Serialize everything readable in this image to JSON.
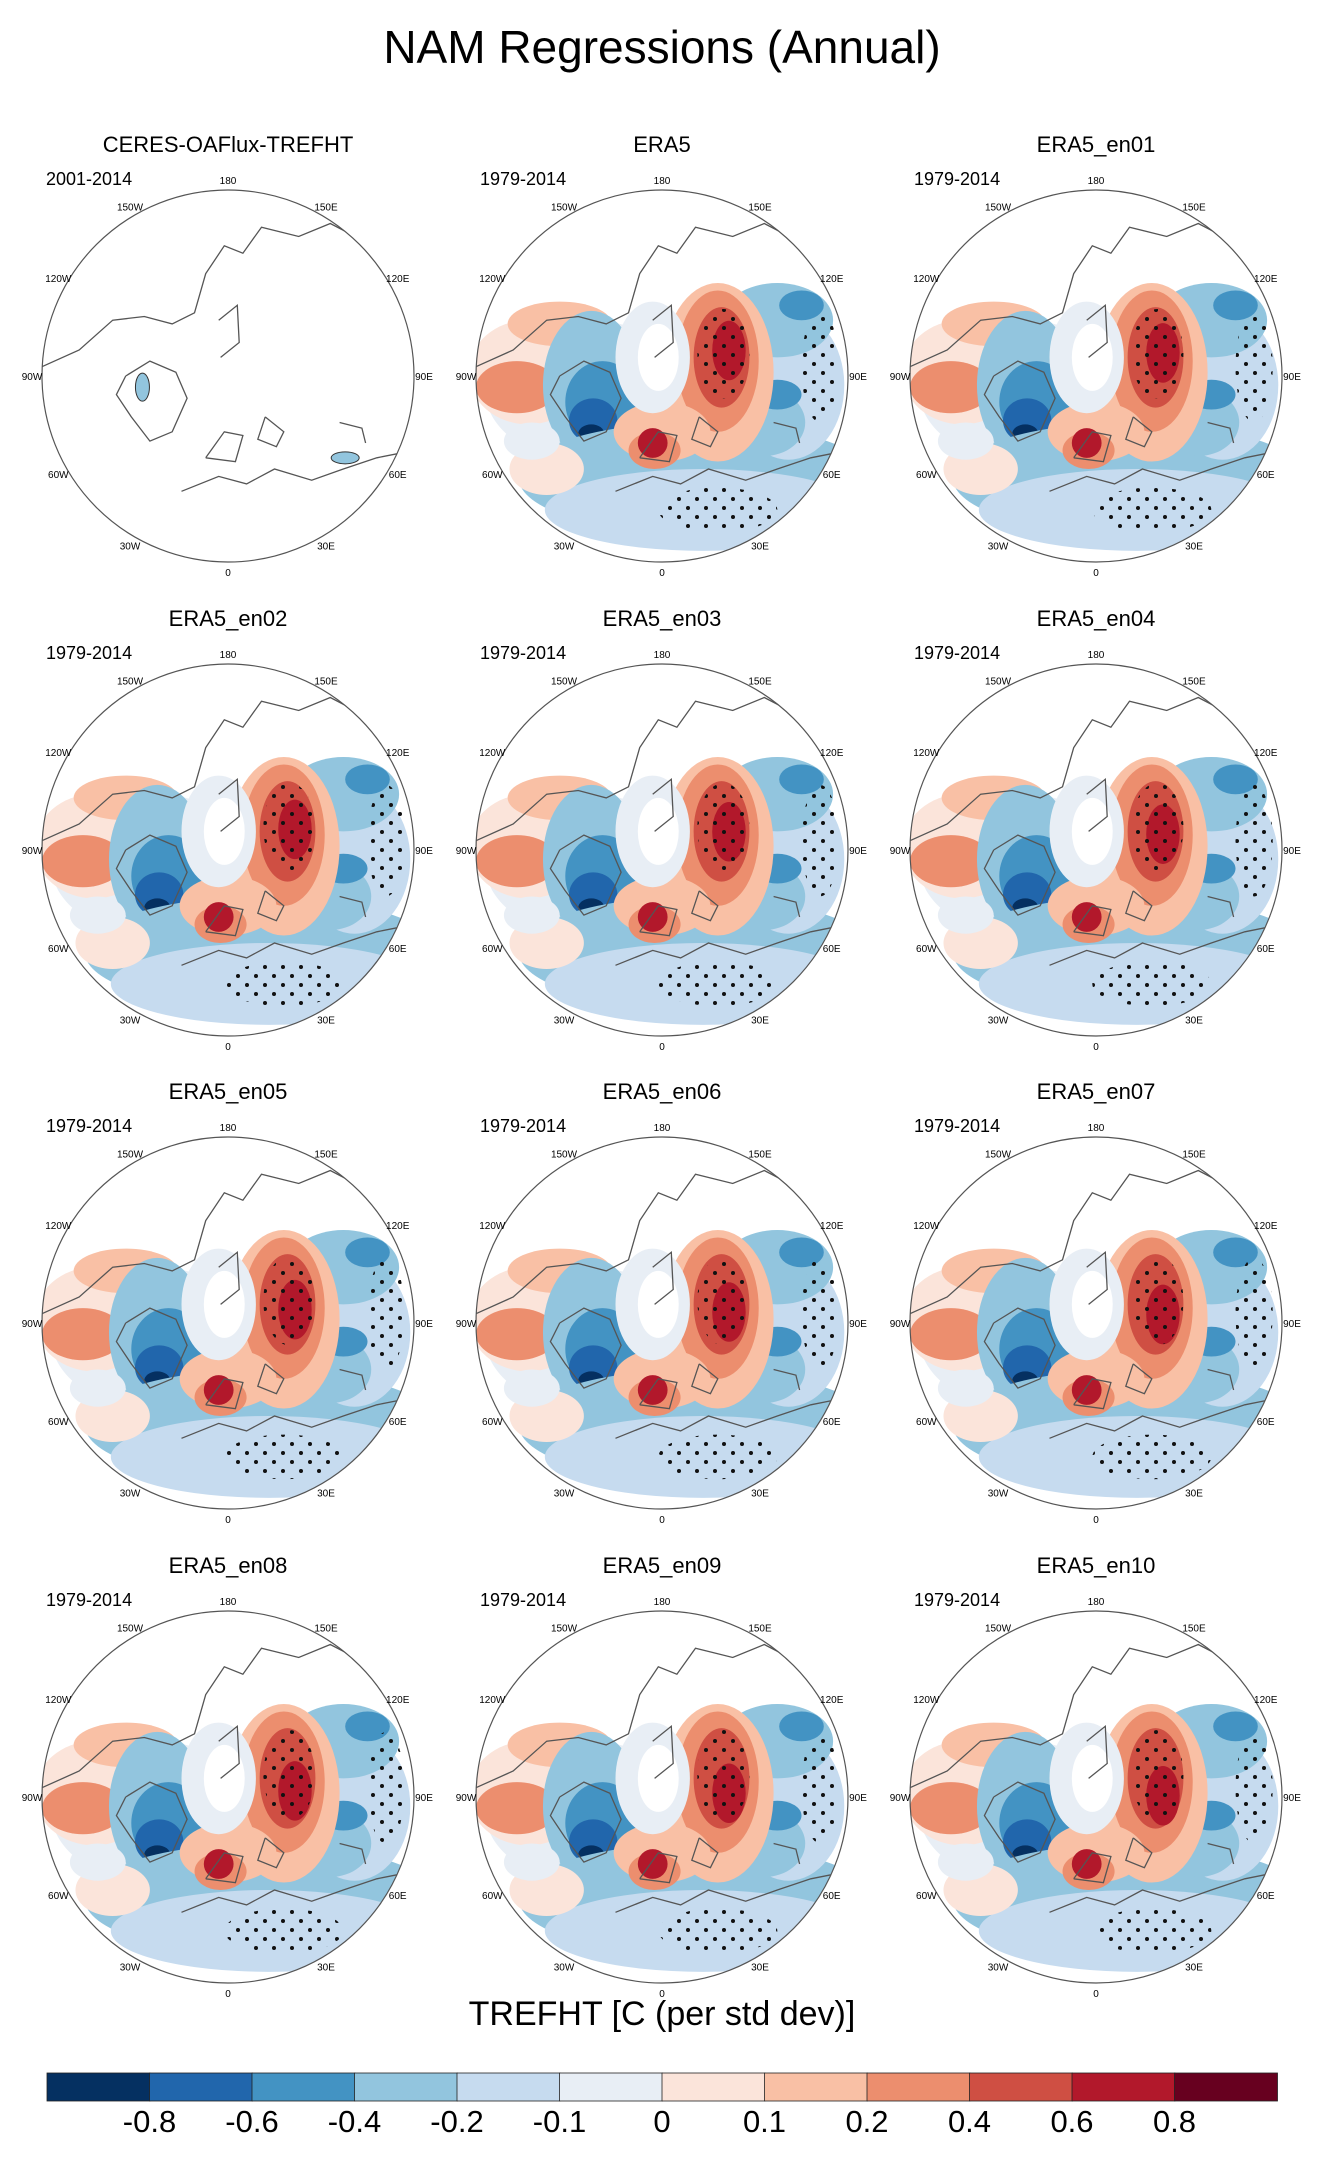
{
  "figure_title": "NAM Regressions (Annual)",
  "chart_data": {
    "type": "heatmap",
    "projection": "north-polar-stereographic",
    "variable_label": "TREFHT [C (per std dev)]",
    "lon_labels": [
      "180",
      "150E",
      "120E",
      "90E",
      "60E",
      "30E",
      "0",
      "30W",
      "60W",
      "90W",
      "120W",
      "150W"
    ],
    "colorbar": {
      "levels": [
        "-0.8",
        "-0.6",
        "-0.4",
        "-0.2",
        "-0.1",
        "0",
        "0.1",
        "0.2",
        "0.4",
        "0.6",
        "0.8"
      ],
      "colors": [
        "#053061",
        "#2166ac",
        "#4393c3",
        "#92c5de",
        "#c6dbef",
        "#e8eef5",
        "#fbe4da",
        "#f9c0a5",
        "#ec8e6e",
        "#cf4f43",
        "#b2182b",
        "#67001f"
      ]
    },
    "panels": [
      {
        "title": "CERES-OAFlux-TREFHT",
        "period": "2001-2014",
        "has_data": false
      },
      {
        "title": "ERA5",
        "period": "1979-2014",
        "has_data": true
      },
      {
        "title": "ERA5_en01",
        "period": "1979-2014",
        "has_data": true
      },
      {
        "title": "ERA5_en02",
        "period": "1979-2014",
        "has_data": true
      },
      {
        "title": "ERA5_en03",
        "period": "1979-2014",
        "has_data": true
      },
      {
        "title": "ERA5_en04",
        "period": "1979-2014",
        "has_data": true
      },
      {
        "title": "ERA5_en05",
        "period": "1979-2014",
        "has_data": true
      },
      {
        "title": "ERA5_en06",
        "period": "1979-2014",
        "has_data": true
      },
      {
        "title": "ERA5_en07",
        "period": "1979-2014",
        "has_data": true
      },
      {
        "title": "ERA5_en08",
        "period": "1979-2014",
        "has_data": true
      },
      {
        "title": "ERA5_en09",
        "period": "1979-2014",
        "has_data": true
      },
      {
        "title": "ERA5_en10",
        "period": "1979-2014",
        "has_data": true
      }
    ]
  }
}
